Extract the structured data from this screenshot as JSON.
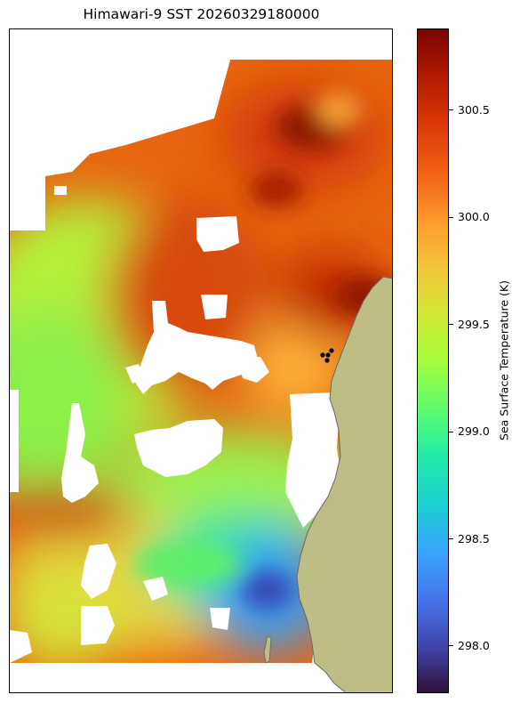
{
  "title": "Himawari-9 SST 20260329180000",
  "colorbar": {
    "label": "Sea Surface Temperature (K)",
    "min": 297.78,
    "max": 300.88,
    "ticks": [
      "298.0",
      "298.5",
      "299.0",
      "299.5",
      "300.0",
      "300.5"
    ],
    "tick_values": [
      298.0,
      298.5,
      299.0,
      299.5,
      300.0,
      300.5
    ],
    "colormap": "turbo"
  },
  "colors": {
    "land": "#bdbd85",
    "coast": "#666666",
    "no_data": "#ffffff",
    "stations": "#000000"
  },
  "stations_count": 4
}
